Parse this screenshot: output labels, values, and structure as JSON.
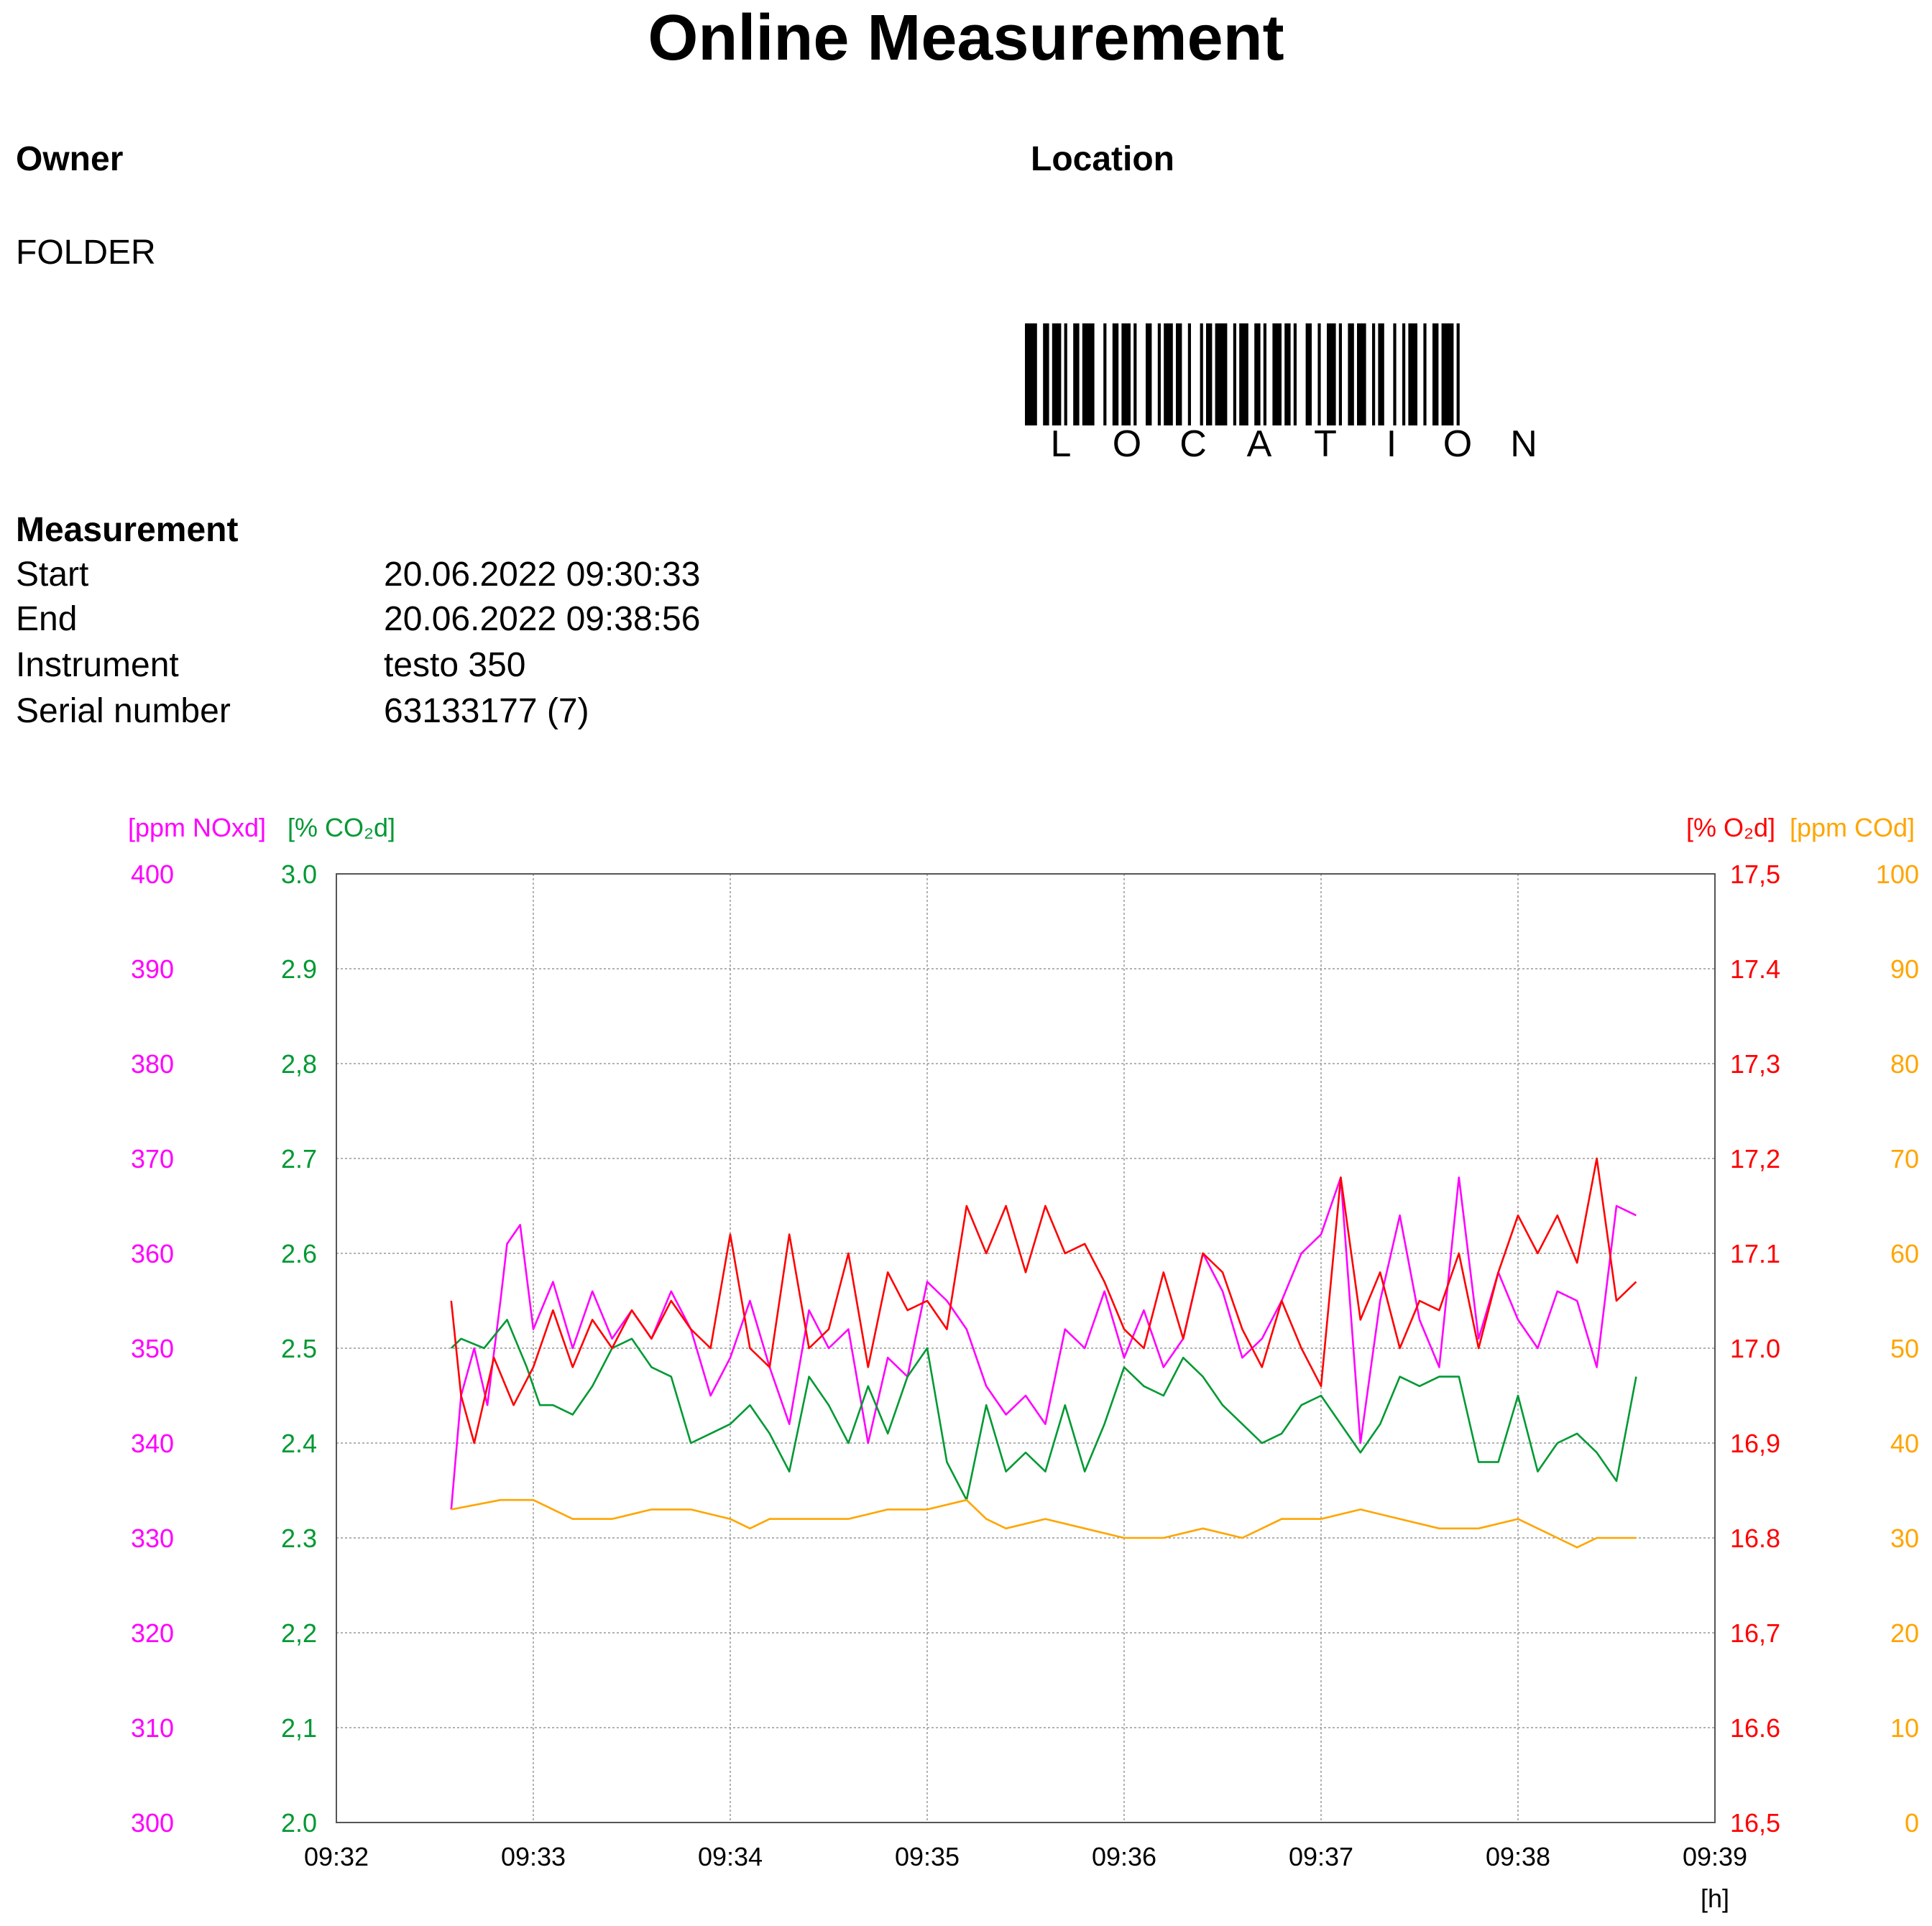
{
  "report": {
    "title": "Online Measurement",
    "owner_heading": "Owner",
    "owner_value": "FOLDER",
    "location_heading": "Location",
    "barcode_text": "LOCATION",
    "measurement_heading": "Measurement",
    "rows": [
      {
        "label": "Start",
        "value": "20.06.2022 09:30:33"
      },
      {
        "label": "End",
        "value": "20.06.2022 09:38:56"
      },
      {
        "label": "Instrument",
        "value": "testo 350"
      },
      {
        "label": "Serial number",
        "value": "63133177 (7)"
      }
    ]
  },
  "chart_data": {
    "type": "line",
    "title": "",
    "xlabel": "[h]",
    "x_ticks": [
      "09:32",
      "09:33",
      "09:34",
      "09:35",
      "09:36",
      "09:37",
      "09:38",
      "09:39"
    ],
    "xlim": [
      "09:32",
      "09:39"
    ],
    "grid": true,
    "axes": [
      {
        "id": "nox",
        "side": "left-outer",
        "label": "[ppm NOxd]",
        "color": "#ff00ff",
        "ylim": [
          300,
          400
        ],
        "ticks": [
          "300",
          "310",
          "320",
          "330",
          "340",
          "350",
          "360",
          "370",
          "380",
          "390",
          "400"
        ]
      },
      {
        "id": "co2",
        "side": "left-inner",
        "label": "[% CO₂d]",
        "color": "#009933",
        "ylim": [
          2.0,
          3.0
        ],
        "ticks": [
          "2.0",
          "2,1",
          "2,2",
          "2.3",
          "2.4",
          "2.5",
          "2.6",
          "2.7",
          "2,8",
          "2.9",
          "3.0"
        ]
      },
      {
        "id": "o2",
        "side": "right-inner",
        "label": "[% O₂d]",
        "color": "#ff0000",
        "ylim": [
          16.5,
          17.5
        ],
        "ticks": [
          "16,5",
          "16.6",
          "16,7",
          "16.8",
          "16,9",
          "17.0",
          "17.1",
          "17,2",
          "17,3",
          "17.4",
          "17,5"
        ]
      },
      {
        "id": "co",
        "side": "right-outer",
        "label": "[ppm COd]",
        "color": "#ffa500",
        "ylim": [
          0,
          100
        ],
        "ticks": [
          "0",
          "10",
          "20",
          "30",
          "40",
          "50",
          "60",
          "70",
          "80",
          "90",
          "100"
        ]
      }
    ],
    "series": [
      {
        "axis": "nox",
        "color": "#ff00ff",
        "x": [
          "09:32:35",
          "09:32:38",
          "09:32:42",
          "09:32:46",
          "09:32:50",
          "09:32:52",
          "09:32:56",
          "09:33:00",
          "09:33:06",
          "09:33:12",
          "09:33:18",
          "09:33:24",
          "09:33:30",
          "09:33:36",
          "09:33:42",
          "09:33:48",
          "09:33:54",
          "09:34:00",
          "09:34:06",
          "09:34:12",
          "09:34:18",
          "09:34:24",
          "09:34:30",
          "09:34:36",
          "09:34:42",
          "09:34:48",
          "09:34:54",
          "09:35:00",
          "09:35:06",
          "09:35:12",
          "09:35:18",
          "09:35:24",
          "09:35:30",
          "09:35:36",
          "09:35:42",
          "09:35:48",
          "09:35:54",
          "09:36:00",
          "09:36:06",
          "09:36:12",
          "09:36:18",
          "09:36:24",
          "09:36:30",
          "09:36:36",
          "09:36:42",
          "09:36:48",
          "09:36:54",
          "09:37:00",
          "09:37:06",
          "09:37:12",
          "09:37:18",
          "09:37:24",
          "09:37:30",
          "09:37:36",
          "09:37:42",
          "09:37:48",
          "09:37:54",
          "09:38:00",
          "09:38:06",
          "09:38:12",
          "09:38:18",
          "09:38:24",
          "09:38:30",
          "09:38:36"
        ],
        "y": [
          333,
          345,
          350,
          344,
          355,
          361,
          363,
          352,
          357,
          350,
          356,
          351,
          354,
          351,
          356,
          352,
          345,
          349,
          355,
          348,
          342,
          354,
          350,
          352,
          340,
          349,
          347,
          357,
          355,
          352,
          346,
          343,
          345,
          342,
          352,
          350,
          356,
          349,
          354,
          348,
          351,
          360,
          356,
          349,
          351,
          355,
          360,
          362,
          368,
          340,
          355,
          364,
          353,
          348,
          368,
          351,
          358,
          353,
          350,
          356,
          355,
          348,
          365,
          364
        ]
      },
      {
        "axis": "co2",
        "color": "#009933",
        "x": [
          "09:32:35",
          "09:32:38",
          "09:32:45",
          "09:32:52",
          "09:32:58",
          "09:33:02",
          "09:33:06",
          "09:33:12",
          "09:33:18",
          "09:33:24",
          "09:33:30",
          "09:33:36",
          "09:33:42",
          "09:33:48",
          "09:33:54",
          "09:34:00",
          "09:34:06",
          "09:34:12",
          "09:34:18",
          "09:34:24",
          "09:34:30",
          "09:34:36",
          "09:34:42",
          "09:34:48",
          "09:34:54",
          "09:35:00",
          "09:35:06",
          "09:35:12",
          "09:35:18",
          "09:35:24",
          "09:35:30",
          "09:35:36",
          "09:35:42",
          "09:35:48",
          "09:35:54",
          "09:36:00",
          "09:36:06",
          "09:36:12",
          "09:36:18",
          "09:36:24",
          "09:36:30",
          "09:36:36",
          "09:36:42",
          "09:36:48",
          "09:36:54",
          "09:37:00",
          "09:37:06",
          "09:37:12",
          "09:37:18",
          "09:37:24",
          "09:37:30",
          "09:37:36",
          "09:37:42",
          "09:37:48",
          "09:37:54",
          "09:38:00",
          "09:38:06",
          "09:38:12",
          "09:38:18",
          "09:38:24",
          "09:38:30",
          "09:38:36"
        ],
        "y": [
          2.5,
          2.51,
          2.5,
          2.53,
          2.48,
          2.44,
          2.44,
          2.43,
          2.46,
          2.5,
          2.51,
          2.48,
          2.47,
          2.4,
          2.41,
          2.42,
          2.44,
          2.41,
          2.37,
          2.47,
          2.44,
          2.4,
          2.46,
          2.41,
          2.47,
          2.5,
          2.38,
          2.34,
          2.44,
          2.37,
          2.39,
          2.37,
          2.44,
          2.37,
          2.42,
          2.48,
          2.46,
          2.45,
          2.49,
          2.47,
          2.44,
          2.42,
          2.4,
          2.41,
          2.44,
          2.45,
          2.42,
          2.39,
          2.42,
          2.47,
          2.46,
          2.47,
          2.47,
          2.38,
          2.38,
          2.45,
          2.37,
          2.4,
          2.41,
          2.39,
          2.36,
          2.47
        ]
      },
      {
        "axis": "o2",
        "color": "#ff0000",
        "x": [
          "09:32:35",
          "09:32:38",
          "09:32:42",
          "09:32:48",
          "09:32:54",
          "09:33:00",
          "09:33:06",
          "09:33:12",
          "09:33:18",
          "09:33:24",
          "09:33:30",
          "09:33:36",
          "09:33:42",
          "09:33:48",
          "09:33:54",
          "09:34:00",
          "09:34:06",
          "09:34:12",
          "09:34:18",
          "09:34:24",
          "09:34:30",
          "09:34:36",
          "09:34:42",
          "09:34:48",
          "09:34:54",
          "09:35:00",
          "09:35:06",
          "09:35:12",
          "09:35:18",
          "09:35:24",
          "09:35:30",
          "09:35:36",
          "09:35:42",
          "09:35:48",
          "09:35:54",
          "09:36:00",
          "09:36:06",
          "09:36:12",
          "09:36:18",
          "09:36:24",
          "09:36:30",
          "09:36:36",
          "09:36:42",
          "09:36:48",
          "09:36:54",
          "09:37:00",
          "09:37:06",
          "09:37:12",
          "09:37:18",
          "09:37:24",
          "09:37:30",
          "09:37:36",
          "09:37:42",
          "09:37:48",
          "09:37:54",
          "09:38:00",
          "09:38:06",
          "09:38:12",
          "09:38:18",
          "09:38:24",
          "09:38:30",
          "09:38:36"
        ],
        "y": [
          17.05,
          16.95,
          16.9,
          16.99,
          16.94,
          16.98,
          17.04,
          16.98,
          17.03,
          17.0,
          17.04,
          17.01,
          17.05,
          17.02,
          17.0,
          17.12,
          17.0,
          16.98,
          17.12,
          17.0,
          17.02,
          17.1,
          16.98,
          17.08,
          17.04,
          17.05,
          17.02,
          17.15,
          17.1,
          17.15,
          17.08,
          17.15,
          17.1,
          17.11,
          17.07,
          17.02,
          17.0,
          17.08,
          17.01,
          17.1,
          17.08,
          17.02,
          16.98,
          17.05,
          17.0,
          16.96,
          17.18,
          17.03,
          17.08,
          17.0,
          17.05,
          17.04,
          17.1,
          17.0,
          17.08,
          17.14,
          17.1,
          17.14,
          17.09,
          17.2,
          17.05,
          17.07
        ]
      },
      {
        "axis": "co",
        "color": "#ffa500",
        "x": [
          "09:32:35",
          "09:32:50",
          "09:33:00",
          "09:33:06",
          "09:33:12",
          "09:33:24",
          "09:33:36",
          "09:33:48",
          "09:34:00",
          "09:34:06",
          "09:34:12",
          "09:34:24",
          "09:34:36",
          "09:34:48",
          "09:35:00",
          "09:35:12",
          "09:35:18",
          "09:35:24",
          "09:35:36",
          "09:35:48",
          "09:36:00",
          "09:36:12",
          "09:36:24",
          "09:36:36",
          "09:36:48",
          "09:37:00",
          "09:37:12",
          "09:37:24",
          "09:37:36",
          "09:37:48",
          "09:38:00",
          "09:38:12",
          "09:38:18",
          "09:38:24",
          "09:38:36"
        ],
        "y": [
          33,
          34,
          34,
          33,
          32,
          32,
          33,
          33,
          32,
          31,
          32,
          32,
          32,
          33,
          33,
          34,
          32,
          31,
          32,
          31,
          30,
          30,
          31,
          30,
          32,
          32,
          33,
          32,
          31,
          31,
          32,
          30,
          29,
          30,
          30
        ]
      }
    ]
  }
}
